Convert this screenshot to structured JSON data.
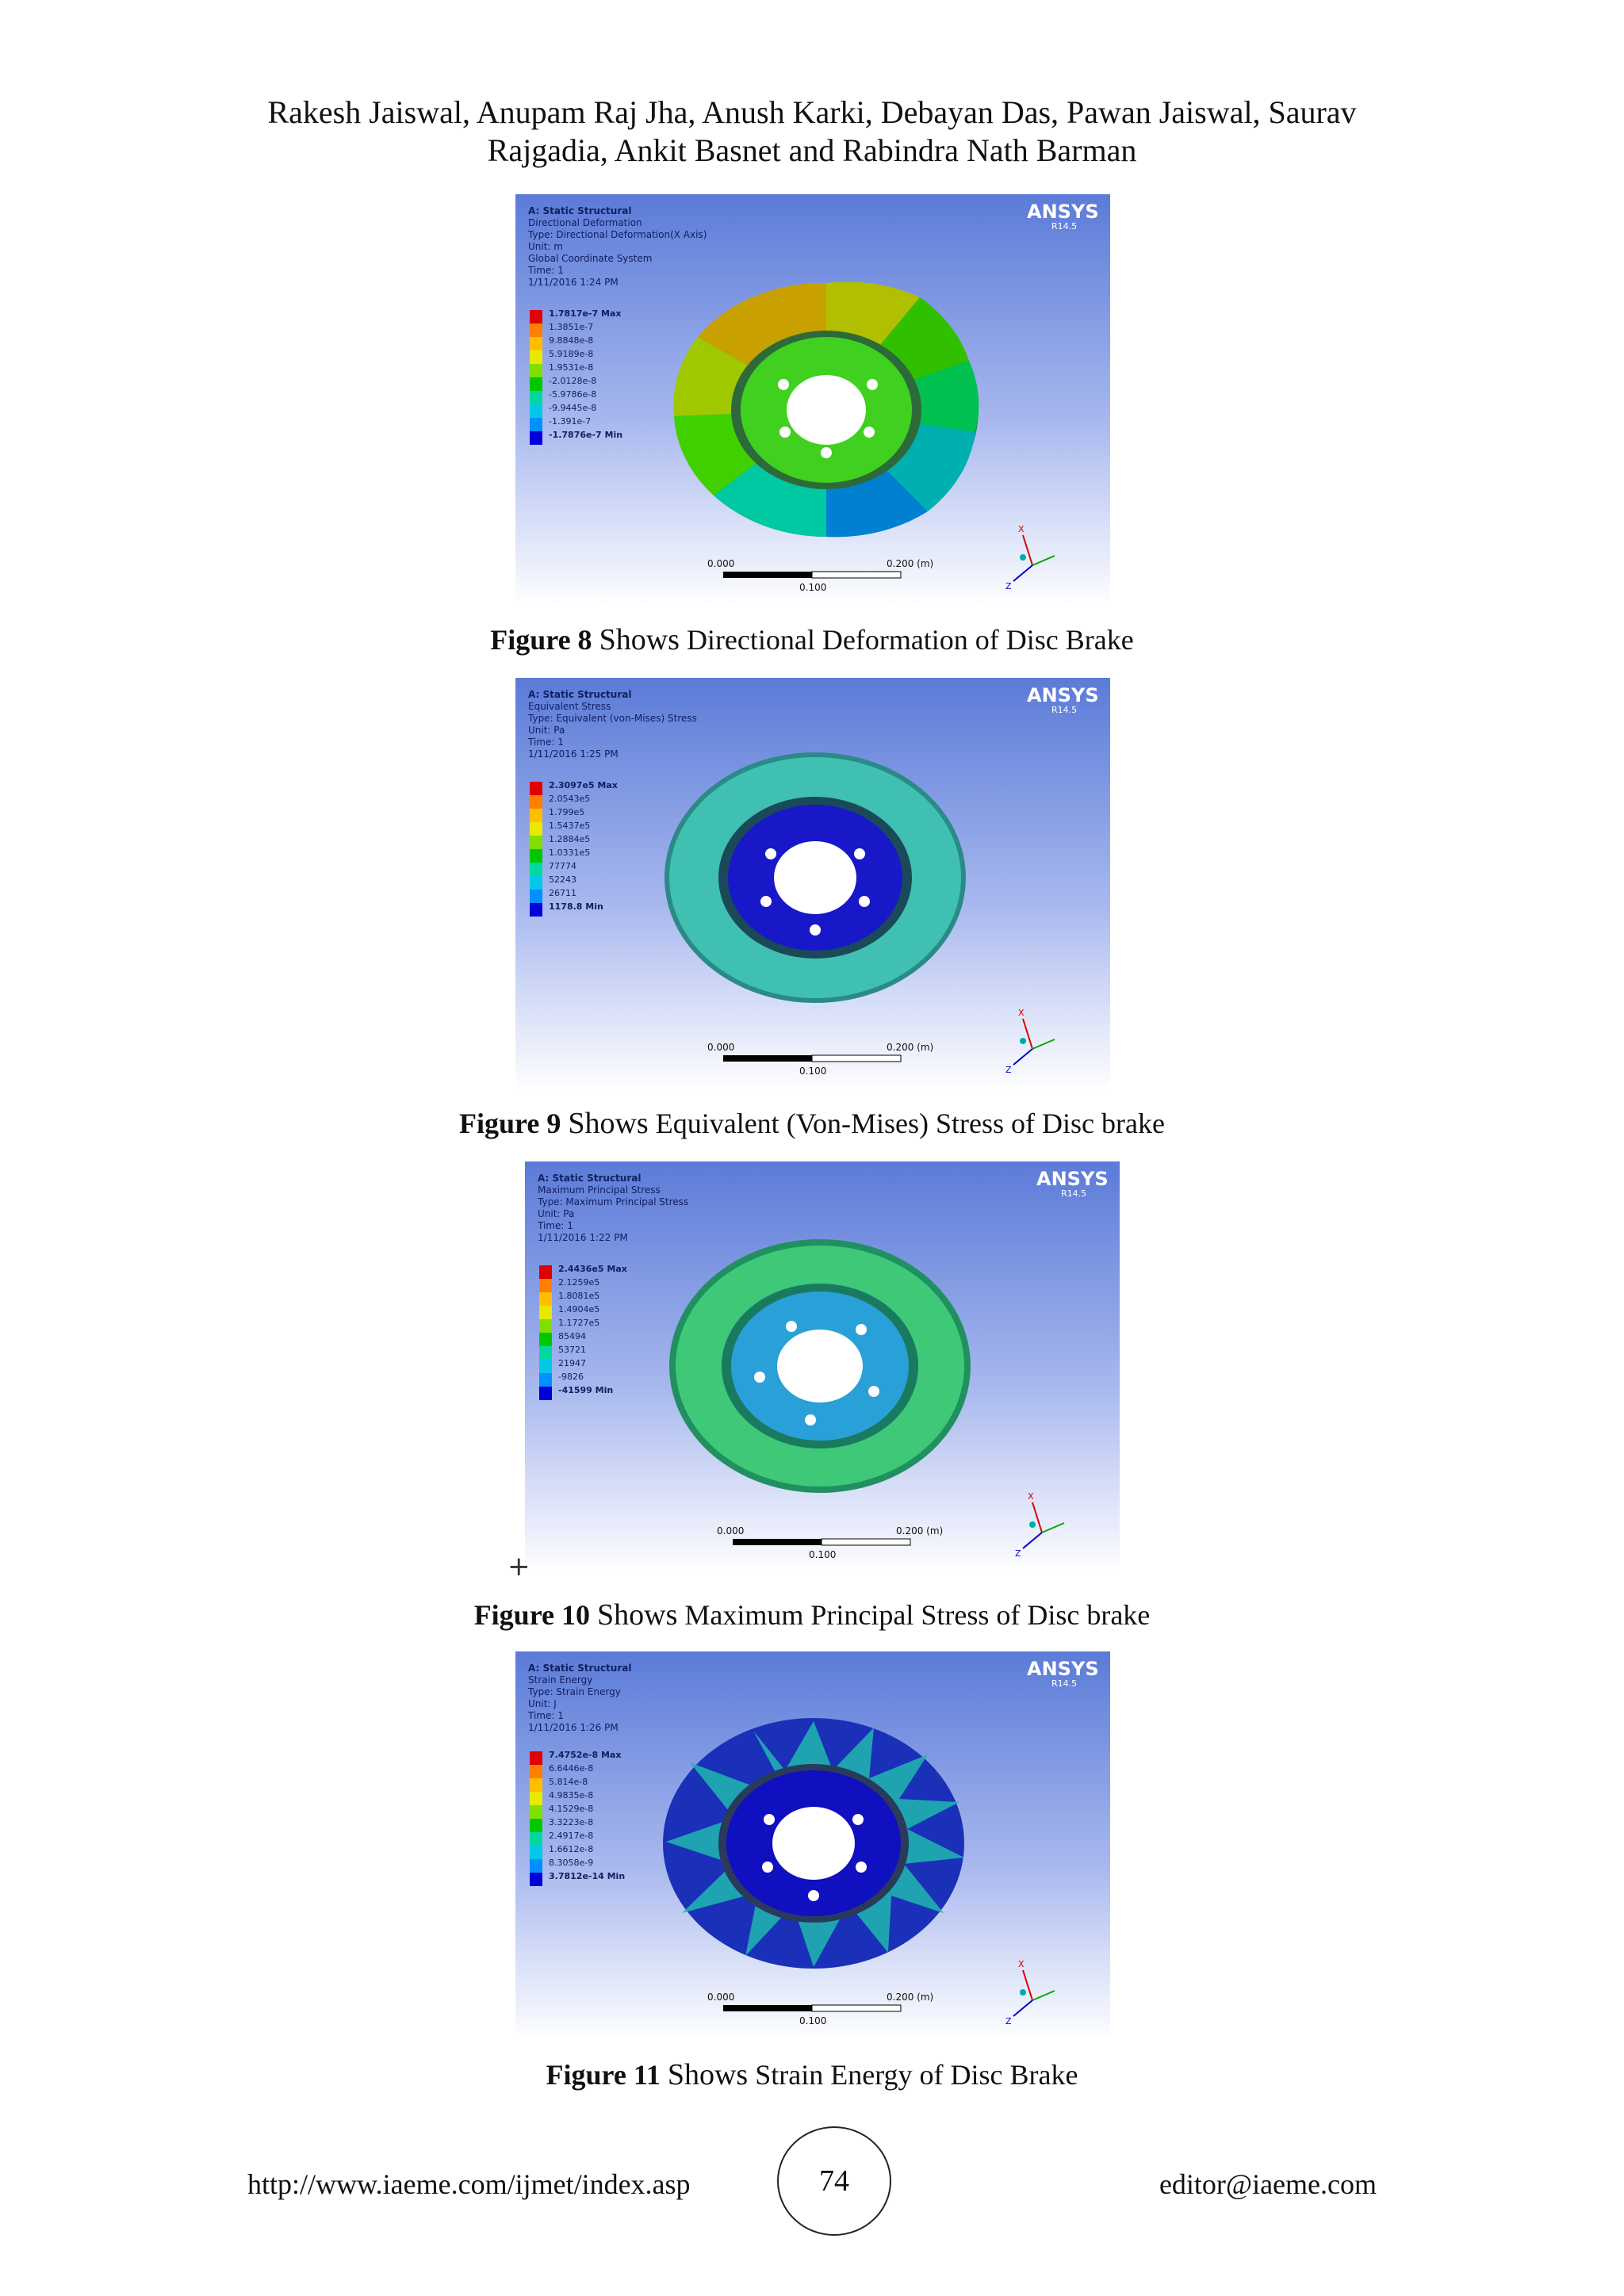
{
  "header": {
    "authors_line1": "Rakesh Jaiswal, Anupam Raj Jha, Anush Karki, Debayan Das, Pawan Jaiswal, Saurav",
    "authors_line2": "Rajgadia, Ankit Basnet and Rabindra Nath Barman"
  },
  "figures": [
    {
      "info": [
        "A: Static Structural",
        "Directional Deformation",
        "Type: Directional Deformation(X Axis)",
        "Unit: m",
        "Global Coordinate System",
        "Time: 1",
        "1/11/2016 1:24 PM"
      ],
      "legend": [
        "1.7817e-7 Max",
        "1.3851e-7",
        "9.8848e-8",
        "5.9189e-8",
        "1.9531e-8",
        "-2.0128e-8",
        "-5.9786e-8",
        "-9.9445e-8",
        "-1.391e-7",
        "-1.7876e-7 Min"
      ],
      "brand": "ANSYS",
      "version": "R14.5",
      "scale": {
        "left": "0.000",
        "right": "0.200 (m)",
        "mid": "0.100"
      },
      "axes": {
        "x": "X",
        "z": "Z"
      },
      "caption_num": "Figure 8",
      "caption_shows": "Shows",
      "caption_text": "Directional Deformation of Disc Brake"
    },
    {
      "info": [
        "A: Static Structural",
        "Equivalent Stress",
        "Type: Equivalent (von-Mises) Stress",
        "Unit: Pa",
        "Time: 1",
        "1/11/2016 1:25 PM"
      ],
      "legend": [
        "2.3097e5 Max",
        "2.0543e5",
        "1.799e5",
        "1.5437e5",
        "1.2884e5",
        "1.0331e5",
        "77774",
        "52243",
        "26711",
        "1178.8 Min"
      ],
      "brand": "ANSYS",
      "version": "R14.5",
      "scale": {
        "left": "0.000",
        "right": "0.200 (m)",
        "mid": "0.100"
      },
      "axes": {
        "x": "X",
        "z": "Z"
      },
      "caption_num": "Figure 9",
      "caption_shows": "Shows",
      "caption_text": "Equivalent (Von-Mises) Stress of Disc brake"
    },
    {
      "info": [
        "A: Static Structural",
        "Maximum Principal Stress",
        "Type: Maximum Principal Stress",
        "Unit: Pa",
        "Time: 1",
        "1/11/2016 1:22 PM"
      ],
      "legend": [
        "2.4436e5 Max",
        "2.1259e5",
        "1.8081e5",
        "1.4904e5",
        "1.1727e5",
        "85494",
        "53721",
        "21947",
        "-9826",
        "-41599 Min"
      ],
      "brand": "ANSYS",
      "version": "R14.5",
      "scale": {
        "left": "0.000",
        "right": "0.200 (m)",
        "mid": "0.100"
      },
      "axes": {
        "x": "X",
        "z": "Z"
      },
      "caption_num": "Figure 10",
      "caption_shows": "Shows",
      "caption_text": "Maximum Principal Stress of Disc brake"
    },
    {
      "info": [
        "A: Static Structural",
        "Strain Energy",
        "Type: Strain Energy",
        "Unit: J",
        "Time: 1",
        "1/11/2016 1:26 PM"
      ],
      "legend": [
        "7.4752e-8 Max",
        "6.6446e-8",
        "5.814e-8",
        "4.9835e-8",
        "4.1529e-8",
        "3.3223e-8",
        "2.4917e-8",
        "1.6612e-8",
        "8.3058e-9",
        "3.7812e-14 Min"
      ],
      "brand": "ANSYS",
      "version": "R14.5",
      "scale": {
        "left": "0.000",
        "right": "0.200 (m)",
        "mid": "0.100"
      },
      "axes": {
        "x": "X",
        "z": "Z"
      },
      "caption_num": "Figure 11",
      "caption_shows": "Shows",
      "caption_text": "Strain Energy of Disc Brake"
    }
  ],
  "legend_colors": [
    "#e00000",
    "#ff7f00",
    "#ffbf00",
    "#e8e800",
    "#7fdf00",
    "#00c800",
    "#00d8a0",
    "#00c8e6",
    "#0090ff",
    "#0000d8"
  ],
  "cursor_mark": "+",
  "footer": {
    "url": "http://www.iaeme.com/ijmet/index.asp",
    "page": "74",
    "email": "editor@iaeme.com"
  }
}
